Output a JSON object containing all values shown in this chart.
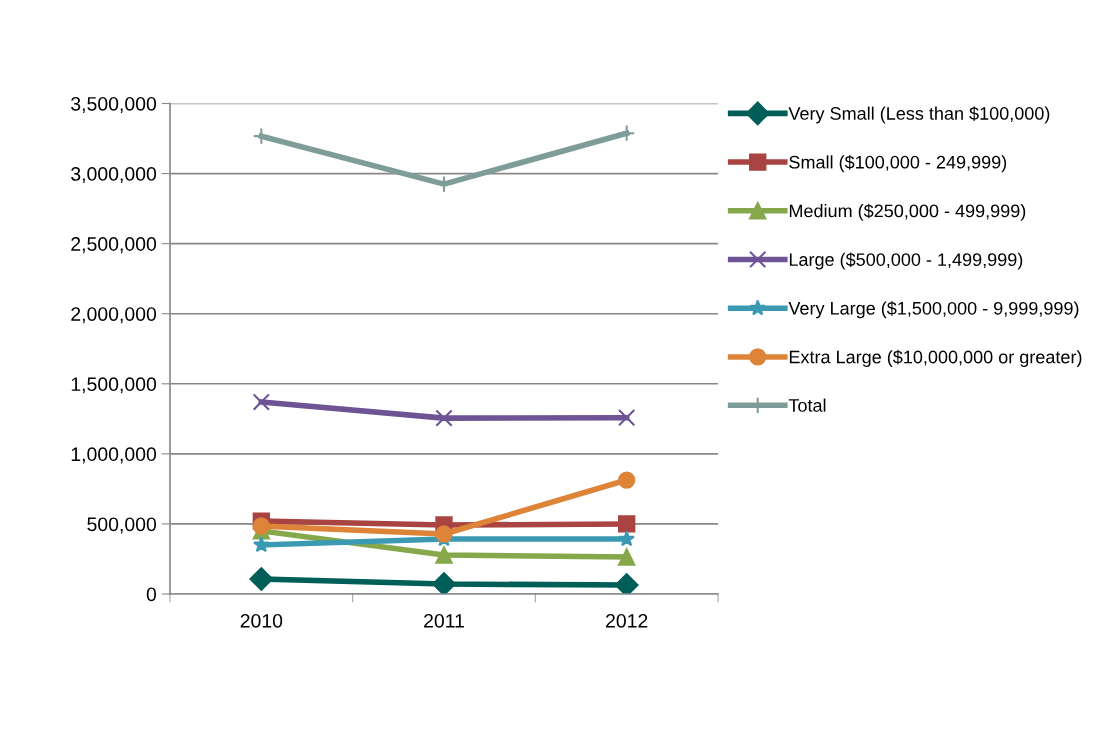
{
  "chart_data": {
    "type": "line",
    "categories": [
      "2010",
      "2011",
      "2012"
    ],
    "ylim": [
      0,
      3500000
    ],
    "yticks": [
      {
        "value": 0,
        "label": "0"
      },
      {
        "value": 500000,
        "label": "500,000"
      },
      {
        "value": 1000000,
        "label": "1,000,000"
      },
      {
        "value": 1500000,
        "label": "1,500,000"
      },
      {
        "value": 2000000,
        "label": "2,000,000"
      },
      {
        "value": 2500000,
        "label": "2,500,000"
      },
      {
        "value": 3000000,
        "label": "3,000,000"
      },
      {
        "value": 3500000,
        "label": "3,500,000"
      }
    ],
    "grid": "y",
    "legend": "right",
    "series": [
      {
        "name": "Very Small (Less than $100,000)",
        "color": "#005e58",
        "marker": "diamond",
        "values": [
          107000,
          71000,
          64000
        ]
      },
      {
        "name": "Small ($100,000 - 249,999)",
        "color": "#a94442",
        "marker": "square",
        "values": [
          520000,
          492000,
          500000
        ]
      },
      {
        "name": "Medium ($250,000 - 499,999)",
        "color": "#86a84a",
        "marker": "triangle",
        "values": [
          450000,
          278000,
          264000
        ]
      },
      {
        "name": "Large ($500,000 - 1,499,999)",
        "color": "#6e5494",
        "marker": "cross",
        "values": [
          1370000,
          1255000,
          1258000
        ]
      },
      {
        "name": "Very Large ($1,500,000 - 9,999,999)",
        "color": "#3b9ab2",
        "marker": "star",
        "values": [
          350000,
          392000,
          392000
        ]
      },
      {
        "name": "Extra Large ($10,000,000 or greater)",
        "color": "#de8438",
        "marker": "circle",
        "values": [
          485000,
          428000,
          813000
        ]
      },
      {
        "name": "Total",
        "color": "#7f9d98",
        "marker": "plus",
        "values": [
          3267000,
          2925000,
          3288000
        ]
      }
    ]
  }
}
